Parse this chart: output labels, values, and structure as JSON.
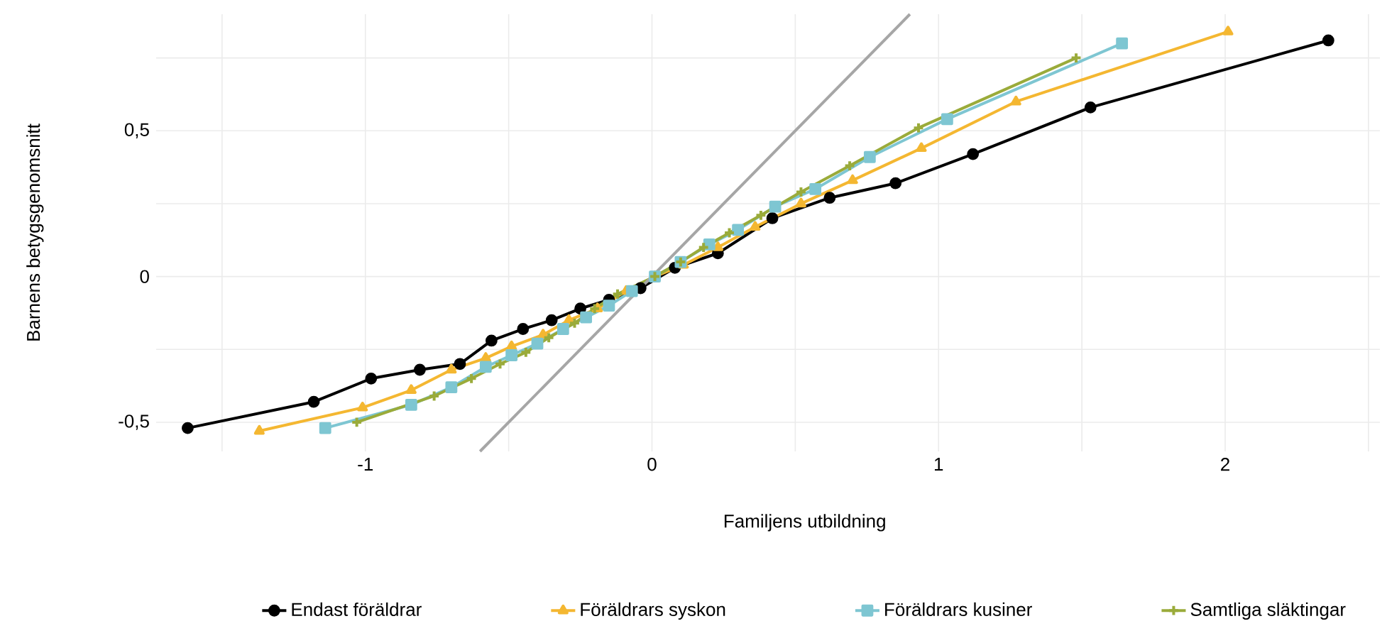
{
  "chart_data": {
    "type": "line",
    "xlabel": "Familjens utbildning",
    "ylabel": "Barnens betygsgenomsnitt",
    "xlim": [
      -1.73,
      2.54
    ],
    "ylim": [
      -0.6,
      0.9
    ],
    "xticks": [
      {
        "value": -1.5,
        "label": null
      },
      -1,
      {
        "value": -0.5,
        "label": null
      },
      0,
      {
        "value": 0.5,
        "label": null
      },
      1,
      {
        "value": 1.5,
        "label": null
      },
      2,
      {
        "value": 2.5,
        "label": null
      }
    ],
    "yticks": [
      {
        "value": -0.5,
        "label": "-0,5"
      },
      {
        "value": -0.25,
        "label": null
      },
      0,
      {
        "value": 0.25,
        "label": null
      },
      {
        "value": 0.5,
        "label": "0,5"
      },
      {
        "value": 0.75,
        "label": null
      }
    ],
    "grid": true,
    "legend": "bottom",
    "line_style": "solid",
    "series": [
      {
        "name": "Endast föräldrar",
        "color": "#000000",
        "marker": "circle",
        "x": [
          -1.62,
          -1.18,
          -0.98,
          -0.81,
          -0.67,
          -0.56,
          -0.45,
          -0.35,
          -0.25,
          -0.15,
          -0.04,
          0.08,
          0.23,
          0.42,
          0.62,
          0.85,
          1.12,
          1.53,
          2.36
        ],
        "values": [
          -0.52,
          -0.43,
          -0.35,
          -0.32,
          -0.3,
          -0.22,
          -0.18,
          -0.15,
          -0.11,
          -0.08,
          -0.04,
          0.03,
          0.08,
          0.2,
          0.27,
          0.32,
          0.42,
          0.58,
          0.81
        ]
      },
      {
        "name": "Föräldrars syskon",
        "color": "#f4b731",
        "marker": "triangle",
        "x": [
          -1.37,
          -1.01,
          -0.84,
          -0.7,
          -0.58,
          -0.49,
          -0.38,
          -0.29,
          -0.19,
          -0.09,
          0.01,
          0.11,
          0.23,
          0.36,
          0.52,
          0.7,
          0.94,
          1.27,
          2.01
        ],
        "values": [
          -0.53,
          -0.45,
          -0.39,
          -0.32,
          -0.28,
          -0.24,
          -0.2,
          -0.15,
          -0.11,
          -0.05,
          0.0,
          0.04,
          0.1,
          0.17,
          0.25,
          0.33,
          0.44,
          0.6,
          0.84
        ]
      },
      {
        "name": "Föräldrars kusiner",
        "color": "#7ec6d2",
        "marker": "square",
        "x": [
          -1.14,
          -0.84,
          -0.7,
          -0.58,
          -0.49,
          -0.4,
          -0.31,
          -0.23,
          -0.15,
          -0.07,
          0.01,
          0.1,
          0.2,
          0.3,
          0.43,
          0.57,
          0.76,
          1.03,
          1.64
        ],
        "values": [
          -0.52,
          -0.44,
          -0.38,
          -0.31,
          -0.27,
          -0.23,
          -0.18,
          -0.14,
          -0.1,
          -0.05,
          0.0,
          0.05,
          0.11,
          0.16,
          0.24,
          0.3,
          0.41,
          0.54,
          0.8
        ]
      },
      {
        "name": "Samtliga släktingar",
        "color": "#9aab3a",
        "marker": "cross",
        "x": [
          -1.03,
          -0.76,
          -0.63,
          -0.53,
          -0.44,
          -0.36,
          -0.27,
          -0.2,
          -0.12,
          0.01,
          0.1,
          0.18,
          0.27,
          0.38,
          0.52,
          0.69,
          0.93,
          1.48
        ],
        "values": [
          -0.5,
          -0.41,
          -0.35,
          -0.3,
          -0.26,
          -0.21,
          -0.16,
          -0.11,
          -0.06,
          0.0,
          0.05,
          0.1,
          0.15,
          0.21,
          0.29,
          0.38,
          0.51,
          0.75
        ]
      },
      {
        "color": "#a6a6a6",
        "marker": "none",
        "x": [
          -0.6,
          0.9
        ],
        "values": [
          -0.6,
          0.9
        ]
      }
    ]
  }
}
